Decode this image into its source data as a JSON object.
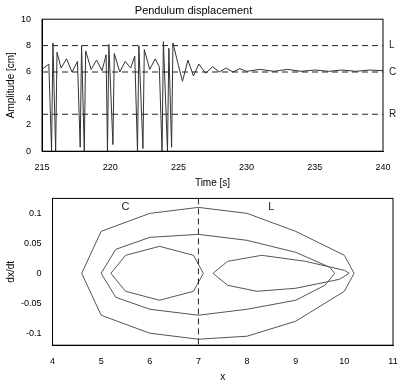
{
  "chart_data": [
    {
      "type": "line",
      "title": "Pendulum displacement",
      "x_label": "Time [s]",
      "y_label": "Amplitude [cm]",
      "xlim": [
        215,
        240
      ],
      "xticks": [
        215,
        220,
        225,
        230,
        235,
        240
      ],
      "ylim": [
        0,
        10
      ],
      "yticks": [
        0,
        2,
        4,
        6,
        8,
        10
      ],
      "grid": false,
      "reference_lines": [
        {
          "axis": "y",
          "value": 8,
          "label": "L",
          "line_style": "dashed",
          "color": "#222222"
        },
        {
          "axis": "y",
          "value": 6,
          "label": "C",
          "line_style": "dashed",
          "color": "#222222"
        },
        {
          "axis": "y",
          "value": 2.8,
          "label": "R",
          "line_style": "dashed",
          "color": "#222222"
        }
      ],
      "series": [
        {
          "color": "#333333",
          "line_style": "solid",
          "x": [
            215,
            215.5,
            215.7,
            215.8,
            216.0,
            216.1,
            216.4,
            216.8,
            217.2,
            217.6,
            217.8,
            217.9,
            218.1,
            218.2,
            218.6,
            219.0,
            219.4,
            219.7,
            219.8,
            219.9,
            220.2,
            220.3,
            220.7,
            221.1,
            221.5,
            221.8,
            222.0,
            222.1,
            222.4,
            222.5,
            222.9,
            223.3,
            223.6,
            223.8,
            223.9,
            224.2,
            224.3,
            224.5,
            224.6,
            225.0,
            225.3,
            225.7,
            226.1,
            226.5,
            227,
            227.5,
            228,
            228.5,
            229,
            229.5,
            230,
            231,
            232,
            233,
            234,
            235,
            236,
            237,
            238,
            239,
            240
          ],
          "values": [
            6.2,
            6.6,
            0,
            8.2,
            0,
            7.5,
            6.3,
            7.0,
            6.0,
            6.8,
            0.3,
            8.0,
            0,
            7.6,
            6.2,
            6.9,
            6.1,
            7.3,
            0,
            8.1,
            0.5,
            7.4,
            6.0,
            6.8,
            6.3,
            7.2,
            0,
            8.0,
            0.2,
            7.7,
            6.2,
            7.0,
            6.4,
            0,
            8.3,
            0,
            7.8,
            0.3,
            8.2,
            6.5,
            5.3,
            6.9,
            5.7,
            6.6,
            5.9,
            6.4,
            6.0,
            6.3,
            6.0,
            6.25,
            6.05,
            6.2,
            6.05,
            6.2,
            6.05,
            6.15,
            6.05,
            6.15,
            6.05,
            6.15,
            6.1
          ]
        }
      ]
    },
    {
      "type": "line",
      "x_label": "x",
      "y_label": "dx/dt",
      "xlim": [
        4,
        11
      ],
      "xticks": [
        4,
        5,
        6,
        7,
        8,
        9,
        10,
        11
      ],
      "ylim": [
        -0.12,
        0.125
      ],
      "yticks": [
        -0.1,
        -0.05,
        0,
        0.05,
        0.1
      ],
      "grid": false,
      "reference_lines": [
        {
          "axis": "x",
          "value": 7,
          "line_style": "dashed",
          "color": "#222222"
        }
      ],
      "annotations": [
        {
          "text": "C",
          "x": 5.5,
          "y": 0.11
        },
        {
          "text": "L",
          "x": 8.5,
          "y": 0.11
        }
      ],
      "series": [
        {
          "color": "#555555",
          "line_style": "solid",
          "x": [
            5,
            5.3,
            6,
            7,
            8,
            9,
            9.7,
            9.8,
            9.6,
            9,
            8,
            7,
            6,
            5.3,
            5
          ],
          "values": [
            0,
            0.04,
            0.06,
            0.065,
            0.055,
            0.035,
            0.01,
            0,
            -0.02,
            -0.045,
            -0.06,
            -0.07,
            -0.06,
            -0.04,
            0
          ]
        },
        {
          "color": "#555555",
          "line_style": "solid",
          "x": [
            5.2,
            5.5,
            6.2,
            6.9,
            7.1,
            6.9,
            6.2,
            5.5,
            5.2
          ],
          "values": [
            0,
            0.03,
            0.045,
            0.03,
            0,
            -0.03,
            -0.045,
            -0.03,
            0
          ]
        },
        {
          "color": "#555555",
          "line_style": "solid",
          "x": [
            4.6,
            5,
            6,
            7,
            8,
            9,
            10,
            10.2,
            10,
            9,
            8,
            7,
            6,
            5,
            4.6
          ],
          "values": [
            0,
            0.07,
            0.1,
            0.11,
            0.1,
            0.07,
            0.03,
            0,
            -0.03,
            -0.08,
            -0.105,
            -0.11,
            -0.1,
            -0.07,
            0
          ]
        },
        {
          "color": "#555555",
          "line_style": "solid",
          "x": [
            7.3,
            7.6,
            8.3,
            9.2,
            10,
            10.1,
            9.9,
            9,
            8.2,
            7.6,
            7.3
          ],
          "values": [
            0,
            0.02,
            0.03,
            0.02,
            0.005,
            0,
            -0.01,
            -0.025,
            -0.03,
            -0.02,
            0
          ]
        }
      ]
    }
  ]
}
